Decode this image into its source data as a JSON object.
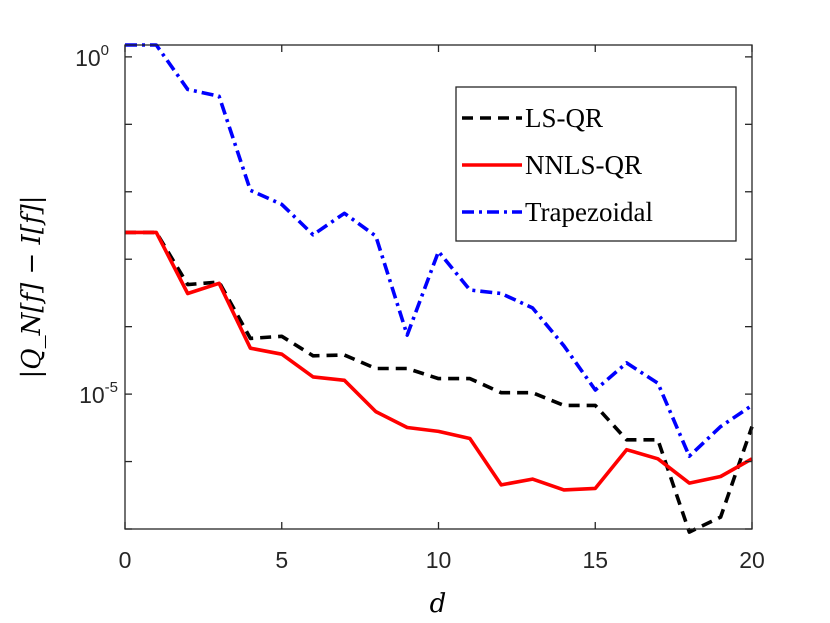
{
  "chart_data": {
    "type": "line",
    "xlabel": "d",
    "ylabel": "|Q_N[f] − I[f]|",
    "y_scale": "log",
    "xlim": [
      0,
      20
    ],
    "ylim": [
      1e-07,
      1.5
    ],
    "x_ticks": [
      "0",
      "5",
      "10",
      "15",
      "20"
    ],
    "y_ticks": [
      {
        "value": 1,
        "base": "10",
        "exp": "0"
      },
      {
        "value": 1e-05,
        "base": "10",
        "exp": "-5"
      }
    ],
    "legend_position": "top-right",
    "x": [
      0,
      1,
      2,
      3,
      4,
      5,
      6,
      7,
      8,
      9,
      10,
      11,
      12,
      13,
      14,
      15,
      16,
      17,
      18,
      19,
      20
    ],
    "series": [
      {
        "name": "LS-QR",
        "color": "#000000",
        "style": "dashed",
        "values": [
          0.0025,
          0.0025,
          0.00042,
          0.00046,
          6.7e-05,
          7.2e-05,
          3.7e-05,
          3.8e-05,
          2.4e-05,
          2.4e-05,
          1.7e-05,
          1.7e-05,
          1.05e-05,
          1.05e-05,
          6.8e-06,
          6.8e-06,
          2.1e-06,
          2.1e-06,
          9e-08,
          1.5e-07,
          3.3e-06
        ]
      },
      {
        "name": "NNLS-QR",
        "color": "#ff0000",
        "style": "solid",
        "values": [
          0.0025,
          0.0025,
          0.00031,
          0.00044,
          4.8e-05,
          3.9e-05,
          1.8e-05,
          1.6e-05,
          5.5e-06,
          3.2e-06,
          2.8e-06,
          2.2e-06,
          4.5e-07,
          5.5e-07,
          3.8e-07,
          4e-07,
          1.5e-06,
          1.1e-06,
          4.8e-07,
          6e-07,
          1.1e-06
        ]
      },
      {
        "name": "Trapezoidal",
        "color": "#0000ff",
        "style": "dashdot",
        "values": [
          1.5,
          1.5,
          0.33,
          0.26,
          0.0105,
          0.0065,
          0.0023,
          0.0048,
          0.0022,
          7.5e-05,
          0.0013,
          0.00035,
          0.00031,
          0.00019,
          5.2e-05,
          1.15e-05,
          2.9e-05,
          1.45e-05,
          1.2e-06,
          3.3e-06,
          6.8e-06
        ]
      }
    ]
  }
}
